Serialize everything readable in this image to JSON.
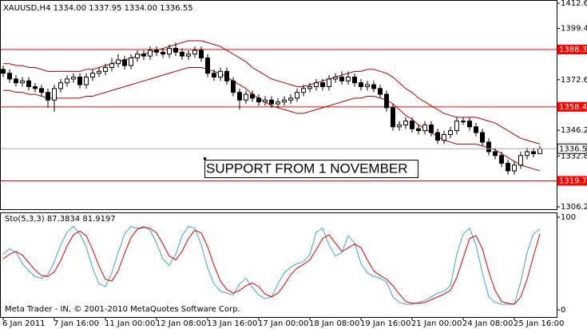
{
  "chart_data": [
    {
      "type": "candlestick",
      "title": "XAUUSD,H4  1334.00 1337.95 1334.00 1336.55",
      "categories": [
        "6 Jan 2011",
        null,
        null,
        null,
        null,
        null,
        null,
        null,
        "7 Jan 16:00",
        null,
        null,
        null,
        null,
        null,
        null,
        null,
        "11 Jan 00:00",
        null,
        null,
        null,
        null,
        null,
        null,
        null,
        "12 Jan 08:00",
        null,
        null,
        null,
        null,
        null,
        null,
        null,
        "13 Jan 16:00",
        null,
        null,
        null,
        null,
        null,
        null,
        null,
        "17 Jan 00:00",
        null,
        null,
        null,
        null,
        null,
        null,
        null,
        "18 Jan 08:00",
        null,
        null,
        null,
        null,
        null,
        null,
        null,
        "19 Jan 16:00",
        null,
        null,
        null,
        null,
        null,
        null,
        null,
        "21 Jan 00:00",
        null,
        null,
        null,
        null,
        null,
        null,
        null,
        "24 Jan 08:00",
        null,
        null,
        null,
        null,
        null,
        null,
        null,
        "25 Jan 16:00",
        null,
        null,
        null,
        null
      ],
      "open": [
        1378,
        1376,
        1373,
        1371,
        1372,
        1369,
        1368,
        1366,
        1362,
        1368,
        1371,
        1373,
        1374,
        1370,
        1374,
        1376,
        1377,
        1379,
        1381,
        1383,
        1380,
        1384,
        1386,
        1385,
        1388,
        1387,
        1386,
        1389,
        1387,
        1385,
        1386,
        1388,
        1384,
        1376,
        1374,
        1377,
        1372,
        1366,
        1362,
        1365,
        1363,
        1361,
        1362,
        1360,
        1361,
        1362,
        1363,
        1366,
        1368,
        1369,
        1371,
        1369,
        1373,
        1374,
        1372,
        1374,
        1371,
        1369,
        1370,
        1368,
        1365,
        1358,
        1348,
        1349,
        1351,
        1347,
        1346,
        1349,
        1345,
        1341,
        1344,
        1346,
        1351,
        1351,
        1348,
        1345,
        1340,
        1335,
        1333,
        1329,
        1325,
        1328,
        1333,
        1335,
        1334
      ],
      "high": [
        1380,
        1378,
        1375,
        1374,
        1374,
        1371,
        1370,
        1368,
        1370,
        1373,
        1375,
        1376,
        1376,
        1376,
        1378,
        1379,
        1381,
        1384,
        1386,
        1385,
        1386,
        1388,
        1388,
        1390,
        1390,
        1389,
        1391,
        1392,
        1389,
        1388,
        1390,
        1390,
        1386,
        1378,
        1379,
        1379,
        1374,
        1368,
        1367,
        1367,
        1365,
        1364,
        1364,
        1363,
        1364,
        1365,
        1368,
        1370,
        1371,
        1373,
        1373,
        1375,
        1376,
        1377,
        1377,
        1376,
        1373,
        1372,
        1372,
        1370,
        1367,
        1360,
        1351,
        1353,
        1353,
        1349,
        1351,
        1351,
        1347,
        1346,
        1348,
        1353,
        1353,
        1353,
        1350,
        1347,
        1342,
        1337,
        1335,
        1331,
        1330,
        1335,
        1337,
        1337,
        1337.95
      ],
      "low": [
        1374,
        1371,
        1369,
        1369,
        1367,
        1366,
        1364,
        1358,
        1356,
        1366,
        1369,
        1371,
        1368,
        1368,
        1372,
        1374,
        1375,
        1377,
        1379,
        1378,
        1378,
        1382,
        1383,
        1383,
        1385,
        1384,
        1384,
        1385,
        1383,
        1383,
        1384,
        1382,
        1374,
        1372,
        1372,
        1370,
        1364,
        1357,
        1360,
        1361,
        1359,
        1359,
        1358,
        1358,
        1359,
        1360,
        1361,
        1364,
        1366,
        1367,
        1367,
        1367,
        1371,
        1370,
        1370,
        1369,
        1367,
        1367,
        1366,
        1363,
        1356,
        1346,
        1346,
        1347,
        1345,
        1344,
        1344,
        1343,
        1339,
        1339,
        1342,
        1344,
        1349,
        1346,
        1343,
        1338,
        1333,
        1331,
        1327,
        1323,
        1323,
        1326,
        1331,
        1332,
        1334
      ],
      "close": [
        1376,
        1373,
        1371,
        1372,
        1369,
        1368,
        1366,
        1362,
        1368,
        1371,
        1373,
        1374,
        1370,
        1374,
        1376,
        1377,
        1379,
        1381,
        1383,
        1380,
        1384,
        1386,
        1385,
        1388,
        1387,
        1386,
        1389,
        1387,
        1385,
        1386,
        1388,
        1384,
        1376,
        1374,
        1377,
        1372,
        1366,
        1362,
        1365,
        1363,
        1361,
        1362,
        1360,
        1361,
        1362,
        1363,
        1366,
        1368,
        1369,
        1371,
        1369,
        1373,
        1374,
        1372,
        1374,
        1371,
        1369,
        1370,
        1368,
        1365,
        1358,
        1348,
        1349,
        1351,
        1347,
        1346,
        1349,
        1345,
        1341,
        1344,
        1346,
        1351,
        1351,
        1348,
        1345,
        1340,
        1335,
        1333,
        1329,
        1325,
        1328,
        1333,
        1335,
        1334,
        1336.55
      ],
      "band_color": "#b00000",
      "upper": [
        1381,
        1381,
        1380,
        1380,
        1379,
        1379,
        1378,
        1377,
        1377,
        1377,
        1377,
        1377,
        1377,
        1378,
        1378,
        1379,
        1380,
        1381,
        1382,
        1383,
        1384,
        1385,
        1386,
        1387,
        1388,
        1389,
        1390,
        1391,
        1392,
        1393,
        1393,
        1393,
        1392,
        1391,
        1390,
        1388,
        1386,
        1384,
        1382,
        1379,
        1377,
        1375,
        1373,
        1372,
        1371,
        1370,
        1369,
        1369,
        1370,
        1371,
        1372,
        1373,
        1374,
        1375,
        1376,
        1377,
        1377,
        1378,
        1378,
        1377,
        1376,
        1374,
        1371,
        1368,
        1366,
        1363,
        1361,
        1359,
        1357,
        1355,
        1354,
        1353,
        1353,
        1353,
        1353,
        1352,
        1351,
        1350,
        1348,
        1346,
        1344,
        1342,
        1341,
        1340,
        1339
      ],
      "lower": [
        1367,
        1367,
        1366,
        1366,
        1365,
        1365,
        1364,
        1363,
        1363,
        1363,
        1363,
        1363,
        1363,
        1364,
        1364,
        1365,
        1366,
        1367,
        1368,
        1369,
        1370,
        1371,
        1372,
        1373,
        1374,
        1375,
        1376,
        1377,
        1378,
        1379,
        1379,
        1379,
        1378,
        1377,
        1376,
        1374,
        1372,
        1370,
        1368,
        1365,
        1363,
        1361,
        1359,
        1358,
        1357,
        1356,
        1355,
        1355,
        1356,
        1357,
        1358,
        1359,
        1360,
        1361,
        1362,
        1363,
        1363,
        1364,
        1364,
        1363,
        1362,
        1360,
        1357,
        1354,
        1352,
        1349,
        1347,
        1345,
        1343,
        1341,
        1340,
        1339,
        1339,
        1339,
        1339,
        1338,
        1337,
        1336,
        1334,
        1332,
        1330,
        1328,
        1327,
        1326,
        1325
      ],
      "ylim": [
        1306.2,
        1412.6
      ],
      "yticks": [
        {
          "value": 1306.2,
          "label": "1306.20"
        },
        {
          "value": 1332.8,
          "label": "1332.80"
        },
        {
          "value": 1346.2,
          "label": "1346.20"
        },
        {
          "value": 1372.6,
          "label": "1372.60"
        },
        {
          "value": 1399.4,
          "label": "1399.40"
        },
        {
          "value": 1412.6,
          "label": "1412.60"
        }
      ],
      "hlines": [
        1388.39,
        1358.42,
        1319.75
      ],
      "hline_color": "#ff0000",
      "annotation": "SUPPORT FROM 1 NOVEMBER"
    },
    {
      "type": "line",
      "title": "Sto(5,3,3) 87.3834 81.9197",
      "series": [
        {
          "color": "#3fa8c8",
          "values": [
            60,
            66,
            62,
            50,
            42,
            36,
            34,
            38,
            52,
            70,
            84,
            90,
            82,
            68,
            45,
            28,
            25,
            40,
            62,
            82,
            90,
            88,
            90,
            86,
            72,
            55,
            48,
            60,
            80,
            90,
            88,
            70,
            45,
            28,
            20,
            18,
            16,
            28,
            34,
            24,
            16,
            12,
            14,
            28,
            40,
            46,
            50,
            52,
            60,
            84,
            88,
            70,
            58,
            62,
            80,
            72,
            50,
            40,
            36,
            34,
            30,
            14,
            8,
            6,
            6,
            8,
            10,
            14,
            18,
            20,
            26,
            60,
            82,
            88,
            70,
            40,
            14,
            8,
            6,
            6,
            6,
            30,
            62,
            82,
            87.3834
          ]
        },
        {
          "color": "#e00000",
          "values": [
            55,
            60,
            63,
            59,
            51,
            43,
            37,
            36,
            41,
            53,
            69,
            81,
            85,
            80,
            65,
            47,
            33,
            31,
            42,
            61,
            78,
            87,
            89,
            88,
            83,
            71,
            58,
            54,
            63,
            77,
            86,
            83,
            68,
            48,
            31,
            22,
            18,
            21,
            26,
            29,
            25,
            17,
            14,
            18,
            27,
            38,
            45,
            49,
            54,
            65,
            77,
            81,
            72,
            63,
            67,
            71,
            67,
            54,
            42,
            37,
            33,
            26,
            17,
            9,
            7,
            7,
            8,
            11,
            14,
            17,
            21,
            35,
            56,
            77,
            80,
            66,
            41,
            21,
            9,
            7,
            6,
            14,
            33,
            58,
            81.9197
          ]
        }
      ],
      "ylim": [
        0,
        100
      ],
      "yticks": [
        0,
        100
      ],
      "footer": "Meta Trader - IN, © 2001-2010 MetaQuotes Software Corp."
    }
  ]
}
